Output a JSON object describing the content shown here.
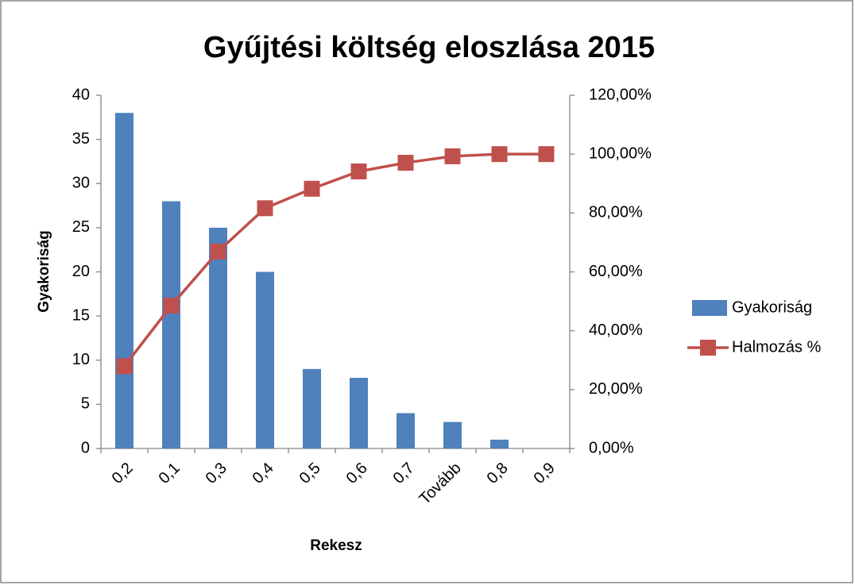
{
  "chart_data": {
    "type": "bar",
    "title": "Gyűjtési költség eloszlása 2015",
    "x_label": "Rekesz",
    "y_label": "Gyakoriság",
    "categories": [
      "0,2",
      "0,1",
      "0,3",
      "0,4",
      "0,5",
      "0,6",
      "0,7",
      "Tovább",
      "0,8",
      "0,9"
    ],
    "series": [
      {
        "name": "Gyakoriság",
        "type": "bar",
        "color": "#4f81bd",
        "values": [
          38,
          28,
          25,
          20,
          9,
          8,
          4,
          3,
          1,
          0
        ]
      },
      {
        "name": "Halmozás %",
        "type": "line",
        "axis": "y2",
        "color": "#c0504d",
        "values": [
          27.94,
          48.53,
          66.91,
          81.62,
          88.24,
          94.12,
          97.06,
          99.26,
          100,
          100
        ]
      }
    ],
    "ylim": [
      0,
      40
    ],
    "yticks": [
      0,
      5,
      10,
      15,
      20,
      25,
      30,
      35,
      40
    ],
    "y2lim": [
      0,
      120
    ],
    "y2ticks": [
      {
        "value": 0,
        "label": "0,00%"
      },
      {
        "value": 20,
        "label": "20,00%"
      },
      {
        "value": 40,
        "label": "40,00%"
      },
      {
        "value": 60,
        "label": "60,00%"
      },
      {
        "value": 80,
        "label": "80,00%"
      },
      {
        "value": 100,
        "label": "100,00%"
      },
      {
        "value": 120,
        "label": "120,00%"
      }
    ],
    "grid": false,
    "legend": "right"
  }
}
